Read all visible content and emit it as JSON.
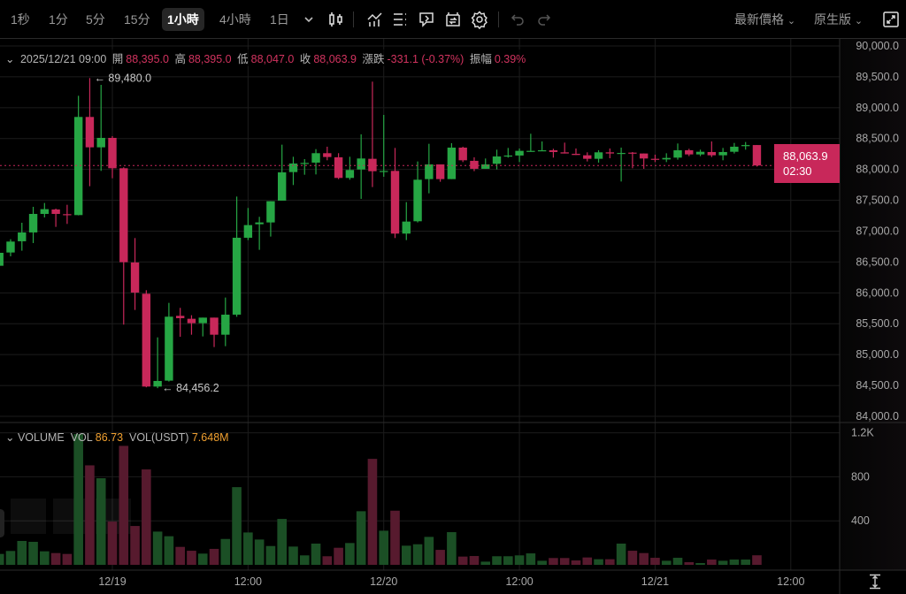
{
  "toolbar": {
    "intervals": [
      "1秒",
      "1分",
      "5分",
      "15分",
      "1小時",
      "4小時",
      "1日"
    ],
    "selected_interval": "1小時",
    "icons": [
      "chevron-down-icon",
      "candlestick-type-icon",
      "indicators-icon",
      "drawing-list-icon",
      "replay-icon",
      "alert-icon",
      "settings-icon",
      "undo-icon",
      "redo-icon"
    ],
    "price_type": "最新價格",
    "version": "原生版",
    "fullscreen_icon": "expand-icon"
  },
  "ohlc": {
    "datetime": "2025/12/21 09:00",
    "open_label": "開",
    "open": "88,395.0",
    "high_label": "高",
    "high": "88,395.0",
    "low_label": "低",
    "low": "88,047.0",
    "close_label": "收",
    "close": "88,063.9",
    "change_label": "漲跌",
    "change": "-331.1 (-0.37%)",
    "amplitude_label": "振幅",
    "amplitude": "0.39%"
  },
  "volume_header": {
    "title": "VOLUME",
    "vol_label": "VOL",
    "vol": "86.73",
    "vol_usdt_label": "VOL(USDT)",
    "vol_usdt": "7.648M"
  },
  "current_price": {
    "price": "88,063.9",
    "countdown": "02:30"
  },
  "colors": {
    "up": "#26a644",
    "down": "#c8285a",
    "vol_up": "#1b4f25",
    "vol_down": "#571a2e",
    "accent": "#f0a030"
  },
  "chart_data": {
    "type": "candlestick",
    "interval": "1h",
    "price_axis": {
      "ylim": [
        84000,
        90000
      ],
      "ticks": [
        "90,000.0",
        "89,500.0",
        "89,000.0",
        "88,500.0",
        "88,000.0",
        "87,500.0",
        "87,000.0",
        "86,500.0",
        "86,000.0",
        "85,500.0",
        "85,000.0",
        "84,500.0",
        "84,000.0"
      ],
      "tick_values": [
        90000,
        89500,
        89000,
        88500,
        88000,
        87500,
        87000,
        86500,
        86000,
        85500,
        85000,
        84500,
        84000
      ]
    },
    "volume_axis": {
      "ylim": [
        0,
        1300
      ],
      "ticks": [
        "1.2K",
        "800",
        "400"
      ],
      "tick_values": [
        1200,
        800,
        400
      ]
    },
    "x_ticks": [
      {
        "label": "12/19",
        "t": "12/19 00:00"
      },
      {
        "label": "12:00",
        "t": "12/19 12:00"
      },
      {
        "label": "12/20",
        "t": "12/20 00:00"
      },
      {
        "label": "12:00",
        "t": "12/20 12:00"
      },
      {
        "label": "12/21",
        "t": "12/21 00:00"
      },
      {
        "label": "12:00",
        "t": "12/21 12:00"
      }
    ],
    "annotations": [
      {
        "label": "← 89,480.0",
        "t": "12/18 22:00",
        "price": 89480,
        "kind": "high"
      },
      {
        "label": "← 84,456.2",
        "t": "12/19 04:00",
        "price": 84456.2,
        "kind": "low"
      }
    ],
    "last_price": 88063.9,
    "candles": [
      {
        "t": "12/18 14:00",
        "o": 86439,
        "h": 86680,
        "l": 86410,
        "c": 86649,
        "v": 99
      },
      {
        "t": "12/18 15:00",
        "o": 86654,
        "h": 86869,
        "l": 86592,
        "c": 86831,
        "v": 126
      },
      {
        "t": "12/18 16:00",
        "o": 86836,
        "h": 87136,
        "l": 86683,
        "c": 86979,
        "v": 217
      },
      {
        "t": "12/18 17:00",
        "o": 86979,
        "h": 87394,
        "l": 86807,
        "c": 87279,
        "v": 209
      },
      {
        "t": "12/18 18:00",
        "o": 87279,
        "h": 87456,
        "l": 87222,
        "c": 87356,
        "v": 123
      },
      {
        "t": "12/18 19:00",
        "o": 87351,
        "h": 87365,
        "l": 87069,
        "c": 87279,
        "v": 107
      },
      {
        "t": "12/18 20:00",
        "o": 87275,
        "h": 87427,
        "l": 87117,
        "c": 87270,
        "v": 99
      },
      {
        "t": "12/18 21:00",
        "o": 87260,
        "h": 89193,
        "l": 87255,
        "c": 88850,
        "v": 1188
      },
      {
        "t": "12/18 22:00",
        "o": 88850,
        "h": 89480,
        "l": 87728,
        "c": 88358,
        "v": 904
      },
      {
        "t": "12/18 23:00",
        "o": 88358,
        "h": 89370,
        "l": 87976,
        "c": 88511,
        "v": 787
      },
      {
        "t": "12/19 00:00",
        "o": 88511,
        "h": 88540,
        "l": 87857,
        "c": 88019,
        "v": 393
      },
      {
        "t": "12/19 01:00",
        "o": 88019,
        "h": 88034,
        "l": 85485,
        "c": 86497,
        "v": 1081
      },
      {
        "t": "12/19 02:00",
        "o": 86492,
        "h": 86888,
        "l": 85723,
        "c": 86005,
        "v": 353
      },
      {
        "t": "12/19 03:00",
        "o": 85986,
        "h": 86043,
        "l": 84470,
        "c": 84482,
        "v": 867
      },
      {
        "t": "12/19 04:00",
        "o": 84482,
        "h": 85279,
        "l": 84456.2,
        "c": 84573,
        "v": 302
      },
      {
        "t": "12/19 05:00",
        "o": 84578,
        "h": 85838,
        "l": 84564,
        "c": 85614,
        "v": 260
      },
      {
        "t": "12/19 06:00",
        "o": 85628,
        "h": 85757,
        "l": 85289,
        "c": 85590,
        "v": 163
      },
      {
        "t": "12/19 07:00",
        "o": 85580,
        "h": 85638,
        "l": 85322,
        "c": 85509,
        "v": 128
      },
      {
        "t": "12/19 08:00",
        "o": 85509,
        "h": 85599,
        "l": 85294,
        "c": 85599,
        "v": 102
      },
      {
        "t": "12/19 09:00",
        "o": 85599,
        "h": 85599,
        "l": 85122,
        "c": 85322,
        "v": 145
      },
      {
        "t": "12/19 10:00",
        "o": 85322,
        "h": 85924,
        "l": 85136,
        "c": 85647,
        "v": 235
      },
      {
        "t": "12/19 11:00",
        "o": 85647,
        "h": 87561,
        "l": 85613,
        "c": 86893,
        "v": 706
      },
      {
        "t": "12/19 12:00",
        "o": 86893,
        "h": 87375,
        "l": 86855,
        "c": 87098,
        "v": 294
      },
      {
        "t": "12/19 13:00",
        "o": 87112,
        "h": 87232,
        "l": 86697,
        "c": 87141,
        "v": 230
      },
      {
        "t": "12/19 14:00",
        "o": 87141,
        "h": 87485,
        "l": 86912,
        "c": 87485,
        "v": 171
      },
      {
        "t": "12/19 15:00",
        "o": 87494,
        "h": 88401,
        "l": 87494,
        "c": 87952,
        "v": 417
      },
      {
        "t": "12/19 16:00",
        "o": 87957,
        "h": 88205,
        "l": 87747,
        "c": 88096,
        "v": 166
      },
      {
        "t": "12/19 17:00",
        "o": 88096,
        "h": 88167,
        "l": 87914,
        "c": 88105,
        "v": 86
      },
      {
        "t": "12/19 18:00",
        "o": 88110,
        "h": 88329,
        "l": 87919,
        "c": 88263,
        "v": 193
      },
      {
        "t": "12/19 19:00",
        "o": 88263,
        "h": 88368,
        "l": 88148,
        "c": 88201,
        "v": 78
      },
      {
        "t": "12/19 20:00",
        "o": 88196,
        "h": 88263,
        "l": 87843,
        "c": 87862,
        "v": 155
      },
      {
        "t": "12/19 21:00",
        "o": 87862,
        "h": 88205,
        "l": 87833,
        "c": 87991,
        "v": 198
      },
      {
        "t": "12/19 22:00",
        "o": 87999,
        "h": 88568,
        "l": 87523,
        "c": 88177,
        "v": 487
      },
      {
        "t": "12/19 23:00",
        "o": 88172,
        "h": 89422,
        "l": 87714,
        "c": 87971,
        "v": 963
      },
      {
        "t": "12/20 00:00",
        "o": 87960,
        "h": 88883,
        "l": 87881,
        "c": 87975,
        "v": 310
      },
      {
        "t": "12/20 01:00",
        "o": 87976,
        "h": 88348,
        "l": 86888,
        "c": 86960,
        "v": 492
      },
      {
        "t": "12/20 02:00",
        "o": 86960,
        "h": 87470,
        "l": 86855,
        "c": 87155,
        "v": 174
      },
      {
        "t": "12/20 03:00",
        "o": 87160,
        "h": 88129,
        "l": 87141,
        "c": 87833,
        "v": 187
      },
      {
        "t": "12/20 04:00",
        "o": 87843,
        "h": 88415,
        "l": 87613,
        "c": 88081,
        "v": 254
      },
      {
        "t": "12/20 05:00",
        "o": 88081,
        "h": 88081,
        "l": 87800,
        "c": 87843,
        "v": 136
      },
      {
        "t": "12/20 06:00",
        "o": 87843,
        "h": 88425,
        "l": 87843,
        "c": 88353,
        "v": 297
      },
      {
        "t": "12/20 07:00",
        "o": 88353,
        "h": 88368,
        "l": 88119,
        "c": 88148,
        "v": 75
      },
      {
        "t": "12/20 08:00",
        "o": 88139,
        "h": 88196,
        "l": 87972,
        "c": 88010,
        "v": 80
      },
      {
        "t": "12/20 09:00",
        "o": 88010,
        "h": 88177,
        "l": 88010,
        "c": 88081,
        "v": 29
      },
      {
        "t": "12/20 10:00",
        "o": 88091,
        "h": 88320,
        "l": 88000,
        "c": 88210,
        "v": 78
      },
      {
        "t": "12/20 11:00",
        "o": 88210,
        "h": 88348,
        "l": 88191,
        "c": 88225,
        "v": 78
      },
      {
        "t": "12/20 12:00",
        "o": 88225,
        "h": 88339,
        "l": 88119,
        "c": 88301,
        "v": 86
      },
      {
        "t": "12/20 13:00",
        "o": 88291,
        "h": 88578,
        "l": 88287,
        "c": 88301,
        "v": 104
      },
      {
        "t": "12/20 14:00",
        "o": 88296,
        "h": 88453,
        "l": 88296,
        "c": 88310,
        "v": 37
      },
      {
        "t": "12/20 15:00",
        "o": 88310,
        "h": 88334,
        "l": 88191,
        "c": 88282,
        "v": 62
      },
      {
        "t": "12/20 16:00",
        "o": 88277,
        "h": 88434,
        "l": 88258,
        "c": 88258,
        "v": 62
      },
      {
        "t": "12/20 17:00",
        "o": 88253,
        "h": 88339,
        "l": 88234,
        "c": 88234,
        "v": 40
      },
      {
        "t": "12/20 18:00",
        "o": 88229,
        "h": 88277,
        "l": 88129,
        "c": 88172,
        "v": 67
      },
      {
        "t": "12/20 19:00",
        "o": 88172,
        "h": 88310,
        "l": 88110,
        "c": 88277,
        "v": 51
      },
      {
        "t": "12/20 20:00",
        "o": 88277,
        "h": 88339,
        "l": 88181,
        "c": 88258,
        "v": 51
      },
      {
        "t": "12/20 21:00",
        "o": 88258,
        "h": 88353,
        "l": 87804,
        "c": 88267,
        "v": 193
      },
      {
        "t": "12/20 22:00",
        "o": 88272,
        "h": 88282,
        "l": 88019,
        "c": 88258,
        "v": 128
      },
      {
        "t": "12/20 23:00",
        "o": 88258,
        "h": 88258,
        "l": 88010,
        "c": 88177,
        "v": 107
      },
      {
        "t": "12/21 00:00",
        "o": 88172,
        "h": 88239,
        "l": 88119,
        "c": 88162,
        "v": 64
      },
      {
        "t": "12/21 01:00",
        "o": 88162,
        "h": 88262,
        "l": 88119,
        "c": 88186,
        "v": 37
      },
      {
        "t": "12/21 02:00",
        "o": 88191,
        "h": 88420,
        "l": 88158,
        "c": 88310,
        "v": 64
      },
      {
        "t": "12/21 03:00",
        "o": 88310,
        "h": 88334,
        "l": 88215,
        "c": 88243,
        "v": 24
      },
      {
        "t": "12/21 04:00",
        "o": 88243,
        "h": 88320,
        "l": 88215,
        "c": 88286,
        "v": 16
      },
      {
        "t": "12/21 05:00",
        "o": 88282,
        "h": 88453,
        "l": 88200,
        "c": 88229,
        "v": 48
      },
      {
        "t": "12/21 06:00",
        "o": 88229,
        "h": 88348,
        "l": 88148,
        "c": 88282,
        "v": 37
      },
      {
        "t": "12/21 07:00",
        "o": 88286,
        "h": 88429,
        "l": 88258,
        "c": 88368,
        "v": 48
      },
      {
        "t": "12/21 08:00",
        "o": 88377,
        "h": 88444,
        "l": 88320,
        "c": 88395,
        "v": 48
      },
      {
        "t": "12/21 09:00",
        "o": 88395,
        "h": 88395,
        "l": 88047,
        "c": 88063.9,
        "v": 86.73
      }
    ]
  }
}
